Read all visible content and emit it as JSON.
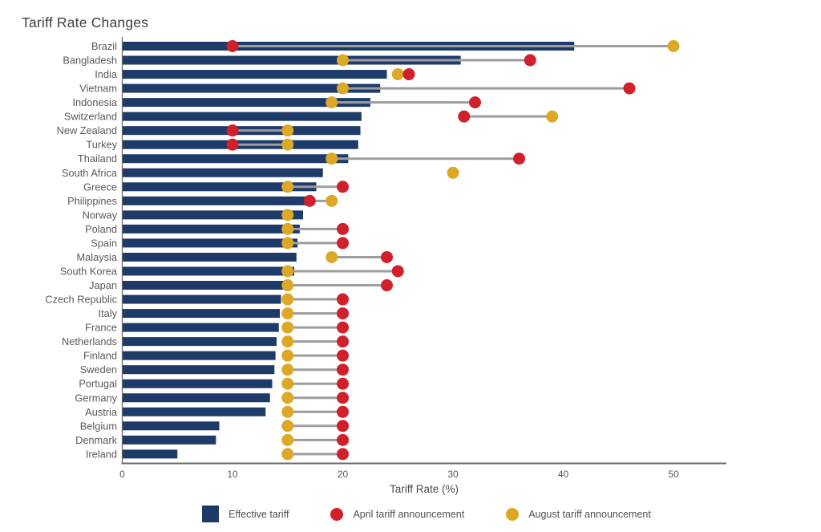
{
  "title": "Tariff Rate Changes",
  "colors": {
    "bar": "#1d3a68",
    "april": "#cf202b",
    "august": "#dea827",
    "connector": "#9d9d9d",
    "axis_line": "#6a6a6a",
    "tick_text": "#595959",
    "label_text": "#595959",
    "title_text": "#3f3f3f"
  },
  "legend": [
    {
      "label": "Effective tariff",
      "shape": "square",
      "color_key": "bar"
    },
    {
      "label": "April tariff announcement",
      "shape": "circle",
      "color_key": "april"
    },
    {
      "label": "August tariff announcement",
      "shape": "circle",
      "color_key": "august"
    }
  ],
  "chart_data": {
    "type": "bar",
    "subtype": "horizontal-bar-with-dumbbell-dots",
    "title": "Tariff Rate Changes",
    "xlabel": "Tariff Rate (%)",
    "xlim": [
      0,
      55
    ],
    "xticks": [
      0,
      10,
      20,
      30,
      40,
      50
    ],
    "grid": false,
    "legend_position": "bottom",
    "categories": [
      "Brazil",
      "Bangladesh",
      "India",
      "Vietnam",
      "Indonesia",
      "Switzerland",
      "New Zealand",
      "Turkey",
      "Thailand",
      "South Africa",
      "Greece",
      "Philippines",
      "Norway",
      "Poland",
      "Spain",
      "Malaysia",
      "South Korea",
      "Japan",
      "Czech Republic",
      "Italy",
      "France",
      "Netherlands",
      "Finland",
      "Sweden",
      "Portugal",
      "Germany",
      "Austria",
      "Belgium",
      "Denmark",
      "Ireland"
    ],
    "series": [
      {
        "name": "Effective tariff",
        "mark": "bar",
        "values": [
          41,
          30.7,
          24,
          23.4,
          22.5,
          21.7,
          21.6,
          21.4,
          20.5,
          18.2,
          17.6,
          17,
          16.4,
          16.1,
          15.9,
          15.8,
          15.6,
          15.4,
          14.4,
          14.3,
          14.2,
          14,
          13.9,
          13.8,
          13.6,
          13.4,
          13,
          8.8,
          8.5,
          5
        ]
      },
      {
        "name": "April tariff announcement",
        "mark": "dot",
        "values": [
          10,
          37,
          26,
          46,
          32,
          31,
          10,
          10,
          36,
          null,
          20,
          17,
          null,
          20,
          20,
          24,
          25,
          24,
          20,
          20,
          20,
          20,
          20,
          20,
          20,
          20,
          20,
          20,
          20,
          20
        ]
      },
      {
        "name": "August tariff announcement",
        "mark": "dot",
        "values": [
          50,
          20,
          25,
          20,
          19,
          39,
          15,
          15,
          19,
          30,
          15,
          19,
          15,
          15,
          15,
          19,
          15,
          15,
          15,
          15,
          15,
          15,
          15,
          15,
          15,
          15,
          15,
          15,
          15,
          15
        ]
      }
    ]
  }
}
